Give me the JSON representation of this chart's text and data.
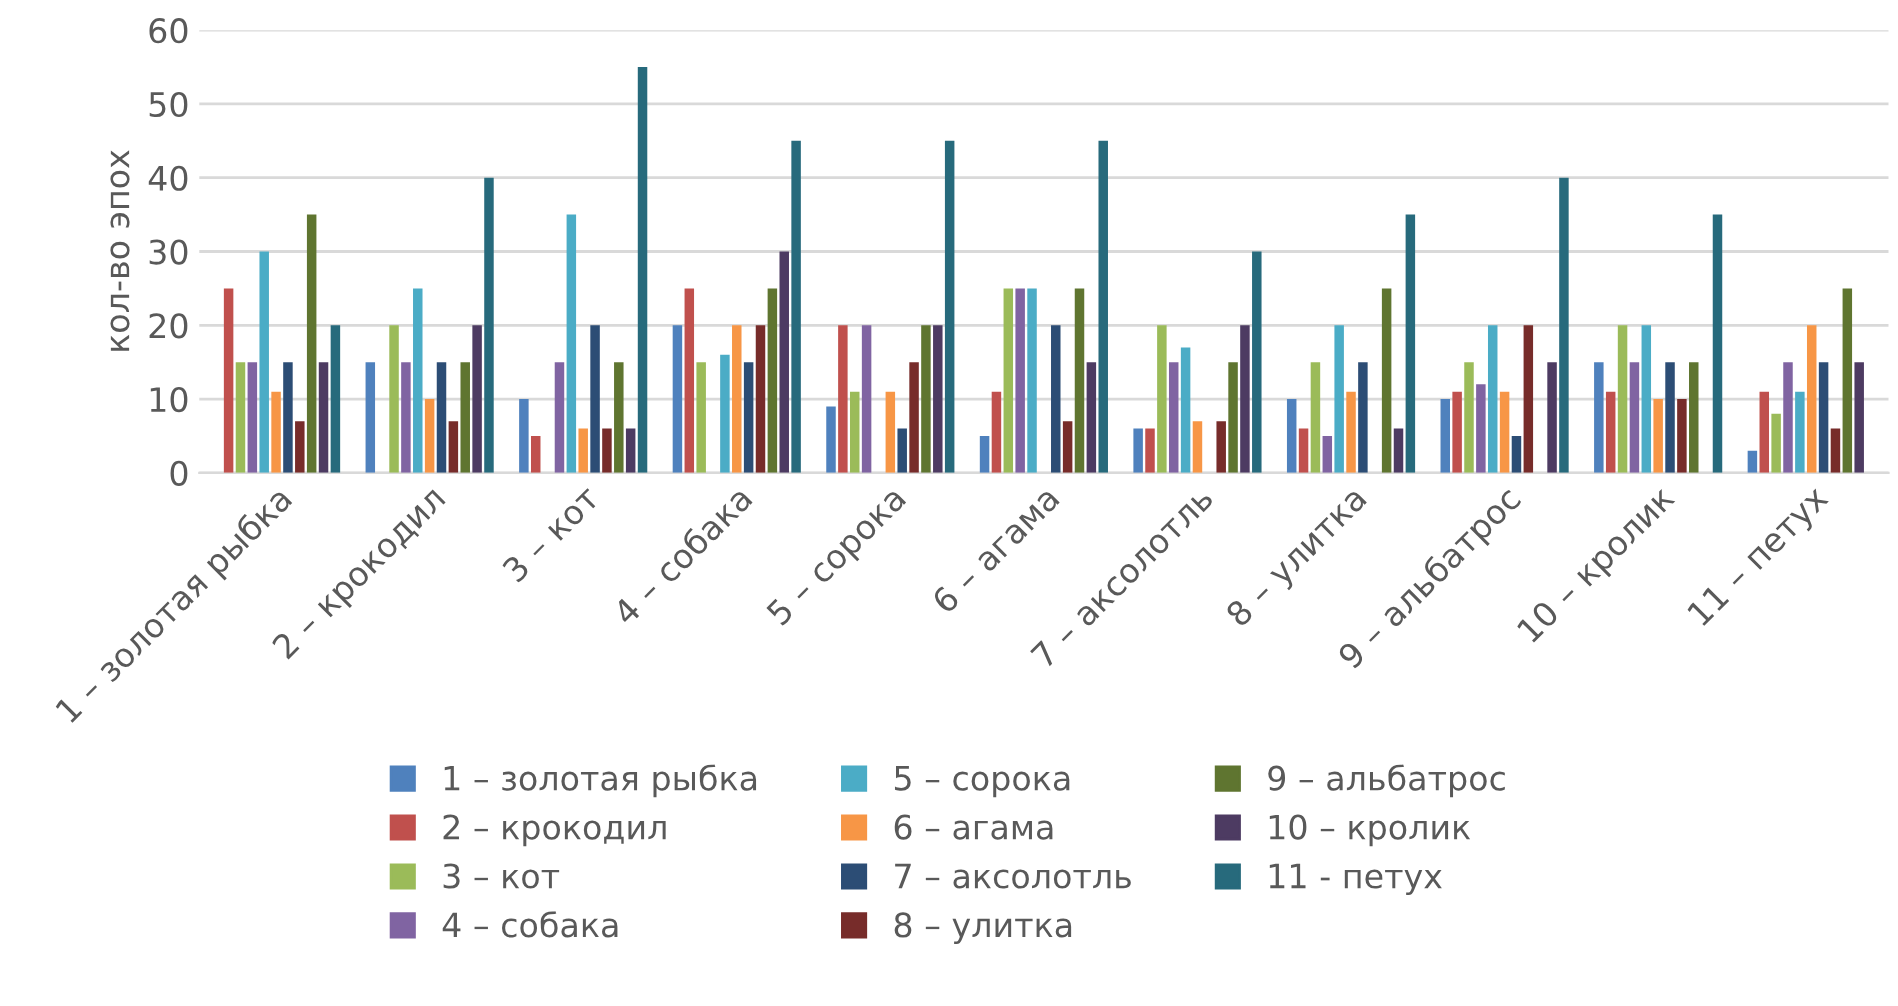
{
  "chart_data": {
    "type": "bar",
    "ylabel": "кол-во эпох",
    "categories": [
      "1 – золотая рыбка",
      "2 – крокодил",
      "3 – кот",
      "4 – собака",
      "5 – сорока",
      "6 – агама",
      "7 – аксолотль",
      "8 – улитка",
      "9 – альбатрос",
      "10 – кролик",
      "11 – петух"
    ],
    "series": [
      {
        "name": "1 – золотая рыбка",
        "color": "#4f81bd",
        "values": [
          null,
          15,
          10,
          20,
          9,
          5,
          6,
          10,
          10,
          15,
          3
        ]
      },
      {
        "name": "2 – крокодил",
        "color": "#c0504d",
        "values": [
          25,
          null,
          5,
          25,
          20,
          11,
          6,
          6,
          11,
          11,
          11
        ]
      },
      {
        "name": "3 – кот",
        "color": "#9bbb59",
        "values": [
          15,
          20,
          null,
          15,
          11,
          25,
          20,
          15,
          15,
          20,
          8
        ]
      },
      {
        "name": "4 – собака",
        "color": "#8064a2",
        "values": [
          15,
          15,
          15,
          null,
          20,
          25,
          15,
          5,
          12,
          15,
          15
        ]
      },
      {
        "name": "5 – сорока",
        "color": "#4bacc6",
        "values": [
          30,
          25,
          35,
          16,
          null,
          25,
          17,
          20,
          20,
          20,
          11
        ]
      },
      {
        "name": "6 – агама",
        "color": "#f79646",
        "values": [
          11,
          10,
          6,
          20,
          11,
          null,
          7,
          11,
          11,
          10,
          20
        ]
      },
      {
        "name": "7 – аксолотль",
        "color": "#2c4d75",
        "values": [
          15,
          15,
          20,
          15,
          6,
          20,
          null,
          15,
          5,
          15,
          15
        ]
      },
      {
        "name": "8 – улитка",
        "color": "#772c2a",
        "values": [
          7,
          7,
          6,
          20,
          15,
          7,
          7,
          null,
          20,
          10,
          6
        ]
      },
      {
        "name": "9 – альбатрос",
        "color": "#5f7530",
        "values": [
          35,
          15,
          15,
          25,
          20,
          25,
          15,
          25,
          null,
          15,
          25
        ]
      },
      {
        "name": "10 – кролик",
        "color": "#4d3b62",
        "values": [
          15,
          20,
          6,
          30,
          20,
          15,
          20,
          6,
          15,
          null,
          15
        ]
      },
      {
        "name": "11 - петух",
        "color": "#276a7c",
        "values": [
          20,
          40,
          55,
          45,
          45,
          45,
          30,
          35,
          40,
          35,
          null
        ]
      }
    ],
    "ylim": [
      0,
      60
    ],
    "yticks": [
      0,
      10,
      20,
      30,
      40,
      50,
      60
    ],
    "grid": "y",
    "legend": "bottom"
  }
}
